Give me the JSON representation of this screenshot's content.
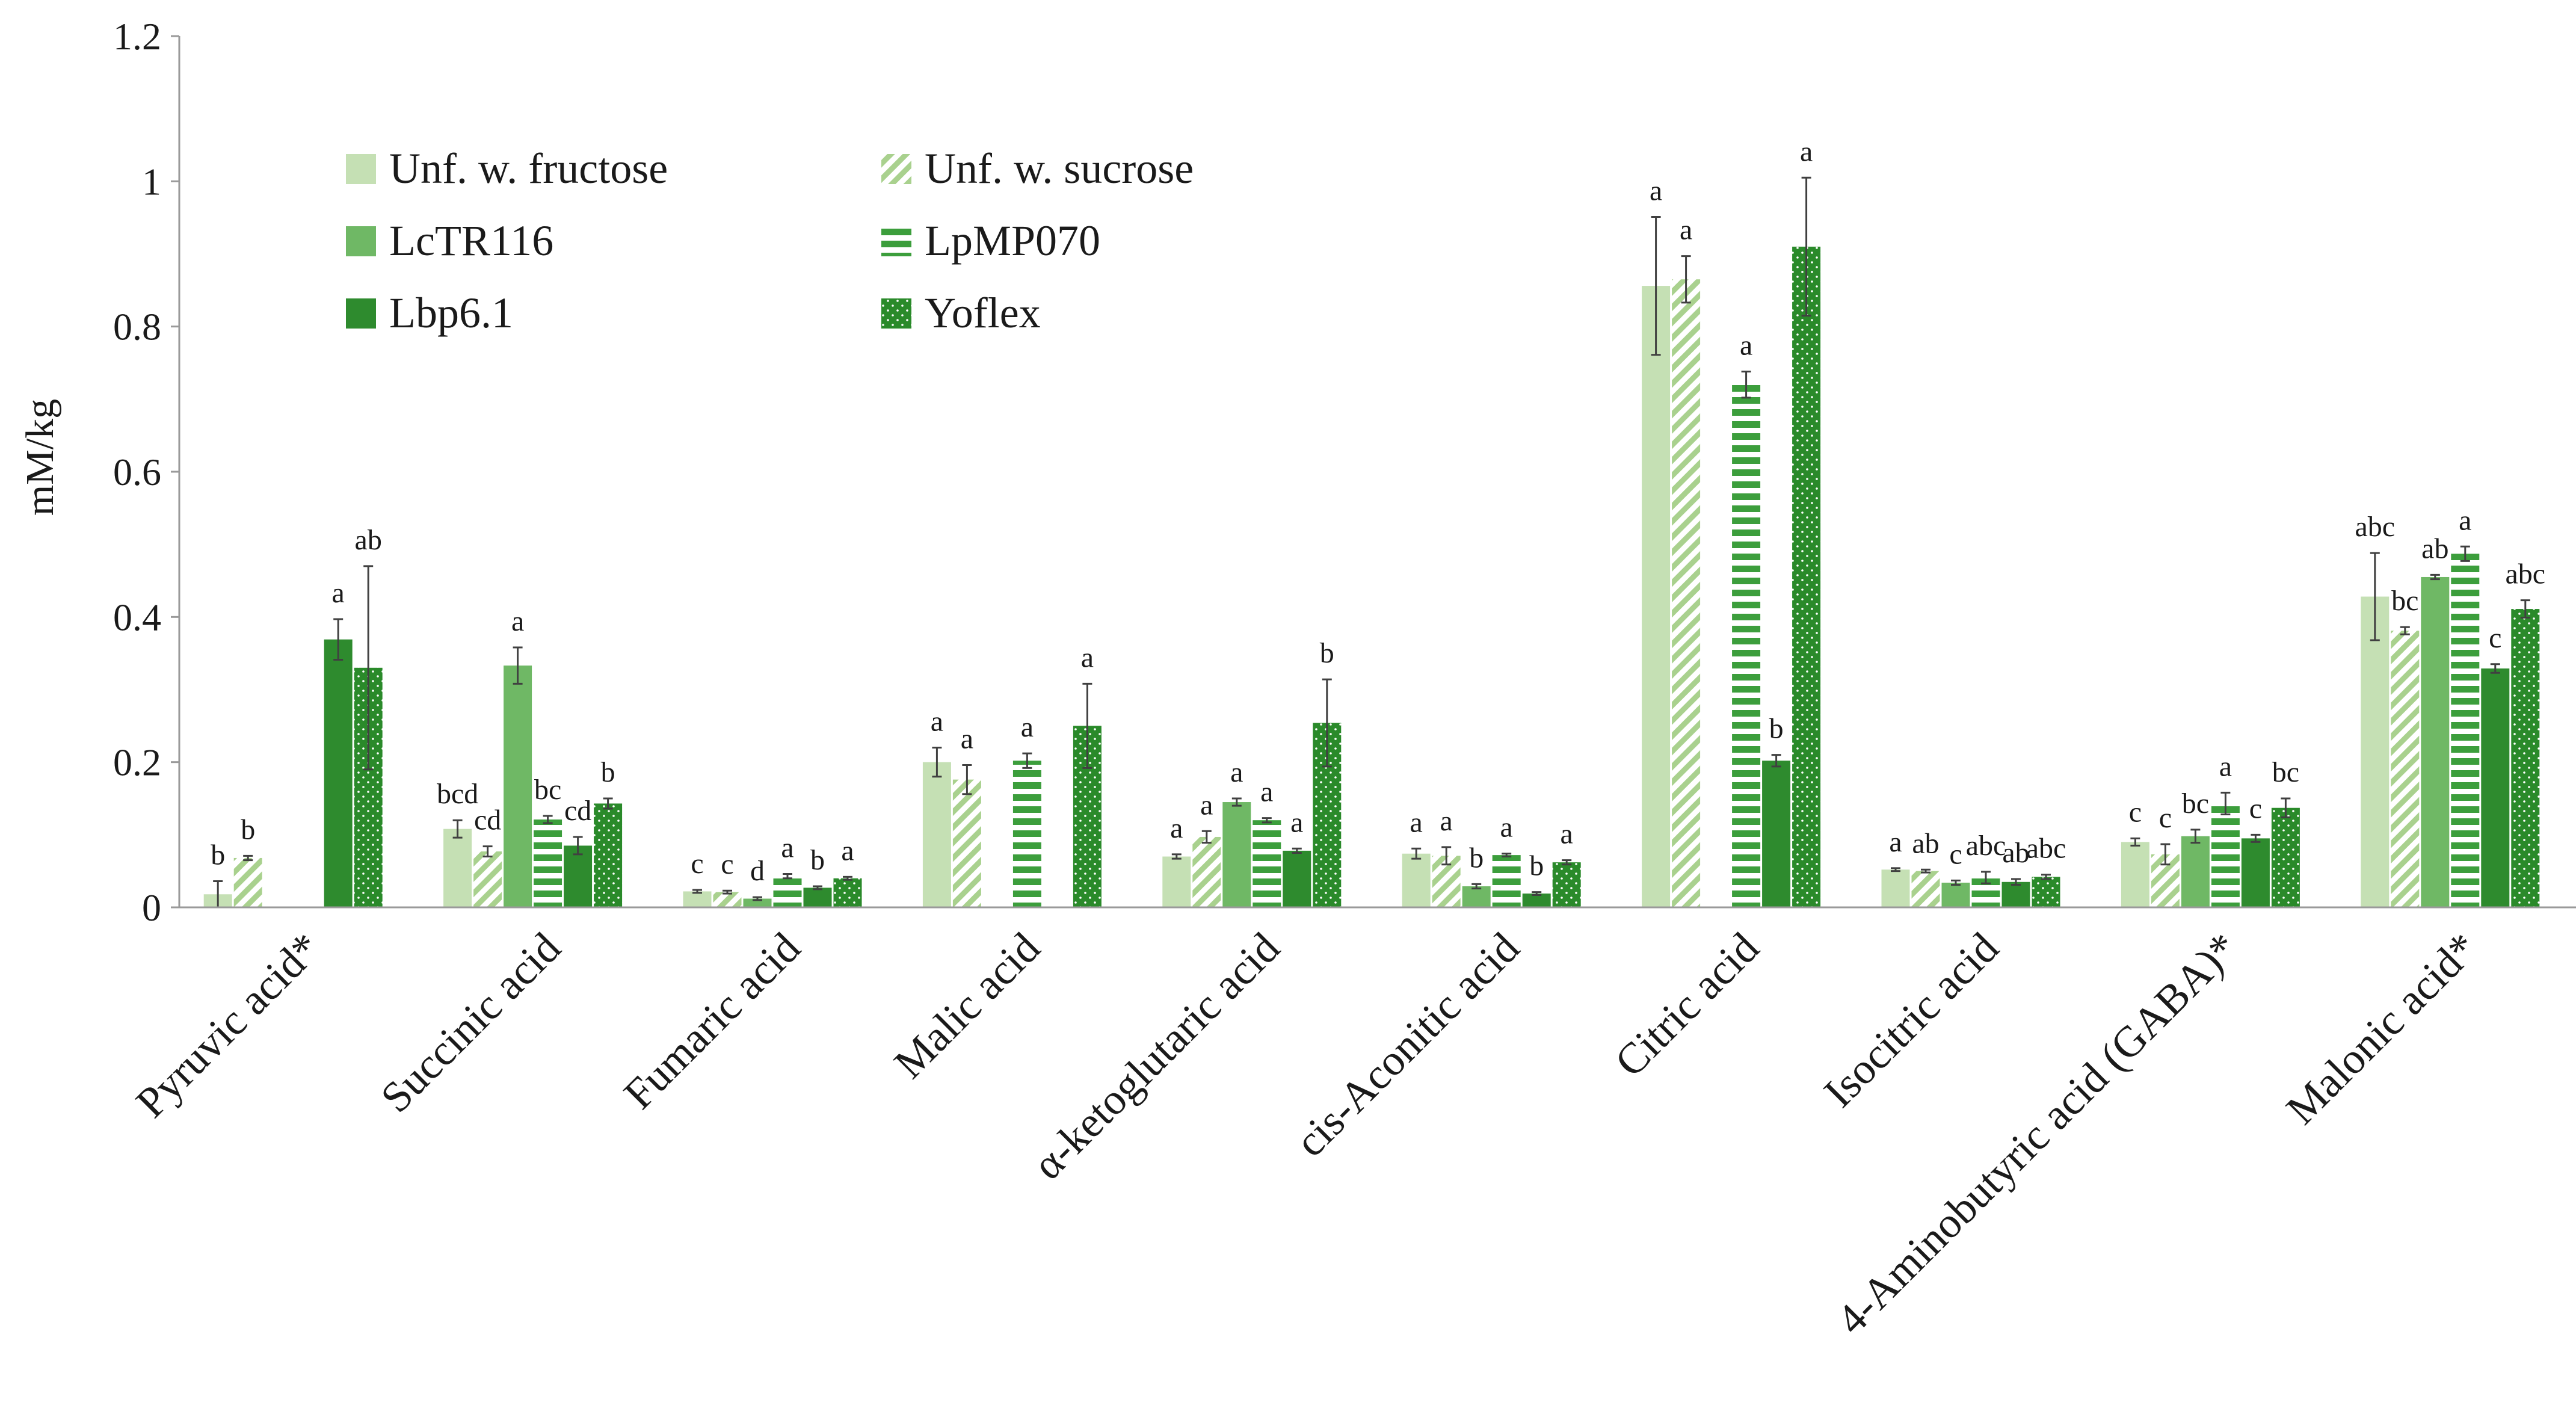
{
  "chart_data": {
    "type": "bar",
    "title": "",
    "xlabel": "",
    "ylabel": "mM/kg",
    "ylim": [
      0,
      1.2
    ],
    "yticks": [
      0,
      0.2,
      0.4,
      0.6,
      0.8,
      1,
      1.2
    ],
    "ytick_labels": [
      "0",
      "0.2",
      "0.4",
      "0.6",
      "0.8",
      "1",
      "1.2"
    ],
    "grid": false,
    "legend_position": "top-left",
    "categories": [
      "Pyruvic acid*",
      "Succinic acid",
      "Fumaric acid",
      "Malic acid",
      "α-ketoglutaric acid",
      "cis-Aconitic acid",
      "Citric acid",
      "Isocitric acid",
      "4-Aminobutyric acid (GABA)*",
      "Malonic acid*"
    ],
    "series": [
      {
        "name": "Unf. w. fructose",
        "color": "#c5e0b4",
        "pattern": "solid",
        "values": [
          0.018,
          0.108,
          0.022,
          0.2,
          0.07,
          0.074,
          0.856,
          0.052,
          0.09,
          0.428
        ],
        "errors": [
          0.018,
          0.012,
          0.002,
          0.02,
          0.003,
          0.007,
          0.095,
          0.002,
          0.005,
          0.06
        ],
        "letters": [
          "b",
          "bcd",
          "c",
          "a",
          "a",
          "a",
          "a",
          "a",
          "c",
          "abc"
        ]
      },
      {
        "name": "Unf. w. sucrose",
        "color": "#a9d18e",
        "pattern": "diagonal",
        "values": [
          0.068,
          0.077,
          0.021,
          0.176,
          0.097,
          0.071,
          0.865,
          0.05,
          0.073,
          0.381
        ],
        "errors": [
          0.003,
          0.007,
          0.002,
          0.02,
          0.008,
          0.012,
          0.032,
          0.002,
          0.014,
          0.005
        ],
        "letters": [
          "b",
          "cd",
          "c",
          "a",
          "a",
          "a",
          "a",
          "ab",
          "c",
          "bc"
        ]
      },
      {
        "name": "LcTR116",
        "color": "#6fb865",
        "pattern": "solid",
        "values": [
          null,
          0.333,
          0.012,
          null,
          0.145,
          0.029,
          null,
          0.034,
          0.098,
          0.455
        ],
        "errors": [
          null,
          0.025,
          0.002,
          null,
          0.005,
          0.003,
          null,
          0.003,
          0.009,
          0.003
        ],
        "letters": [
          "",
          "a",
          "d",
          "",
          "a",
          "b",
          "",
          "c",
          "bc",
          "ab"
        ]
      },
      {
        "name": "LpMP070",
        "color": "#3c9e3c",
        "pattern": "horizontal",
        "values": [
          null,
          0.121,
          0.043,
          0.202,
          0.12,
          0.072,
          0.72,
          0.041,
          0.143,
          0.487
        ],
        "errors": [
          null,
          0.005,
          0.003,
          0.01,
          0.003,
          0.002,
          0.018,
          0.008,
          0.015,
          0.01
        ],
        "letters": [
          "",
          "bc",
          "a",
          "a",
          "a",
          "a",
          "a",
          "abc",
          "a",
          "a"
        ]
      },
      {
        "name": "Lbp6.1",
        "color": "#2e8b2e",
        "pattern": "solid",
        "values": [
          0.369,
          0.085,
          0.027,
          null,
          0.078,
          0.019,
          0.202,
          0.035,
          0.095,
          0.329
        ],
        "errors": [
          0.028,
          0.012,
          0.002,
          null,
          0.003,
          0.002,
          0.008,
          0.004,
          0.005,
          0.006
        ],
        "letters": [
          "a",
          "cd",
          "b",
          "",
          "a",
          "b",
          "b",
          "ab",
          "c",
          "c"
        ]
      },
      {
        "name": "Yoflex",
        "color": "#2a8a2a",
        "pattern": "dots",
        "values": [
          0.33,
          0.143,
          0.04,
          0.25,
          0.254,
          0.062,
          0.91,
          0.042,
          0.137,
          0.411
        ],
        "errors": [
          0.14,
          0.007,
          0.002,
          0.058,
          0.06,
          0.003,
          0.095,
          0.003,
          0.013,
          0.012
        ],
        "letters": [
          "ab",
          "b",
          "a",
          "a",
          "b",
          "a",
          "a",
          "abc",
          "bc",
          "abc"
        ]
      }
    ]
  }
}
